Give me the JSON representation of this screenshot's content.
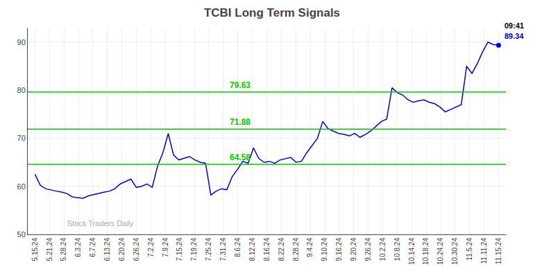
{
  "chart_data": {
    "type": "line",
    "title": "TCBI Long Term Signals",
    "x": [
      0,
      0.3678,
      0.7356,
      1.1034,
      1.4713,
      1.8391,
      2.2069,
      2.5747,
      2.9425,
      3.3103,
      3.6782,
      4.046,
      4.4138,
      4.7816,
      5.1494,
      5.5172,
      5.8851,
      6.2529,
      6.6207,
      6.9885,
      7.3563,
      7.7241,
      8.092,
      8.4598,
      8.8276,
      9.1954,
      9.5632,
      9.931,
      10.2989,
      10.6667,
      11.0345,
      11.4023,
      11.7701,
      12.1379,
      12.5057,
      12.8736,
      13.2414,
      13.6092,
      13.977,
      14.3448,
      14.7126,
      15.0805,
      15.4483,
      15.8161,
      16.1839,
      16.5517,
      16.9195,
      17.2874,
      17.6552,
      18.023,
      18.3908,
      18.7586,
      19.1264,
      19.4943,
      19.8621,
      20.2299,
      20.5977,
      20.9655,
      21.3333,
      21.7011,
      22.069,
      22.4368,
      22.8046,
      23.1724,
      23.5402,
      23.908,
      24.2759,
      24.6437,
      25.0115,
      25.3793,
      25.7471,
      26.1149,
      26.4828,
      26.8506,
      27.2184,
      27.5862,
      27.954,
      28.3218,
      28.6897,
      29.0575,
      29.4253,
      29.7931,
      30.1609,
      30.5287,
      30.8966,
      31.2644,
      31.6322,
      32
    ],
    "values": [
      62.5,
      60.2,
      59.5,
      59.2,
      59.0,
      58.8,
      58.5,
      57.8,
      57.6,
      57.5,
      58.0,
      58.3,
      58.5,
      58.8,
      59.0,
      59.5,
      60.5,
      61.0,
      61.5,
      59.8,
      60.0,
      60.5,
      59.8,
      64.2,
      67.0,
      71.0,
      66.5,
      65.5,
      65.8,
      66.2,
      65.5,
      65.0,
      64.8,
      58.2,
      59.0,
      59.5,
      59.3,
      62.0,
      63.5,
      65.2,
      64.8,
      68.0,
      65.8,
      65.0,
      65.2,
      64.8,
      65.5,
      65.8,
      66.0,
      65.0,
      65.2,
      67.0,
      68.5,
      70.0,
      73.5,
      72.0,
      71.5,
      71.0,
      70.8,
      70.5,
      71.0,
      70.2,
      70.8,
      71.5,
      72.5,
      73.5,
      74.0,
      80.5,
      79.5,
      79.0,
      78.0,
      77.5,
      77.8,
      78.0,
      77.5,
      77.2,
      76.5,
      75.5,
      76.0,
      76.5,
      77.0,
      85.0,
      83.5,
      85.5,
      88.0,
      90.0,
      89.5,
      89.34
    ],
    "color": "#0000dd",
    "xlim": [
      -0.5,
      32.5
    ],
    "xticks": [
      {
        "value": 0,
        "label": "5.15.24"
      },
      {
        "value": 1,
        "label": "5.21.24"
      },
      {
        "value": 2,
        "label": "5.28.24"
      },
      {
        "value": 3,
        "label": "6.3.24"
      },
      {
        "value": 4,
        "label": "6.7.24"
      },
      {
        "value": 5,
        "label": "6.13.24"
      },
      {
        "value": 6,
        "label": "6.20.24"
      },
      {
        "value": 7,
        "label": "6.26.24"
      },
      {
        "value": 8,
        "label": "7.2.24"
      },
      {
        "value": 9,
        "label": "7.9.24"
      },
      {
        "value": 10,
        "label": "7.15.24"
      },
      {
        "value": 11,
        "label": "7.19.24"
      },
      {
        "value": 12,
        "label": "7.25.24"
      },
      {
        "value": 13,
        "label": "7.31.24"
      },
      {
        "value": 14,
        "label": "8.6.24"
      },
      {
        "value": 15,
        "label": "8.12.24"
      },
      {
        "value": 16,
        "label": "8.16.24"
      },
      {
        "value": 17,
        "label": "8.22.24"
      },
      {
        "value": 18,
        "label": "8.28.24"
      },
      {
        "value": 19,
        "label": "9.4.24"
      },
      {
        "value": 20,
        "label": "9.10.24"
      },
      {
        "value": 21,
        "label": "9.16.24"
      },
      {
        "value": 22,
        "label": "9.20.24"
      },
      {
        "value": 23,
        "label": "9.26.24"
      },
      {
        "value": 24,
        "label": "10.2.24"
      },
      {
        "value": 25,
        "label": "10.8.24"
      },
      {
        "value": 26,
        "label": "10.14.24"
      },
      {
        "value": 27,
        "label": "10.18.24"
      },
      {
        "value": 28,
        "label": "10.24.24"
      },
      {
        "value": 29,
        "label": "10.30.24"
      },
      {
        "value": 30,
        "label": "11.5.24"
      },
      {
        "value": 31,
        "label": "11.11.24"
      },
      {
        "value": 32,
        "label": "11.15.24"
      }
    ],
    "ylim": [
      50,
      93
    ],
    "yticks": [
      50,
      60,
      70,
      80,
      90
    ],
    "grid": true,
    "hlines": [
      {
        "value": 64.58,
        "label": "64.58",
        "color": "#00cc00"
      },
      {
        "value": 71.88,
        "label": "71.88",
        "color": "#00cc00"
      },
      {
        "value": 79.63,
        "label": "79.63",
        "color": "#00cc00"
      }
    ],
    "annotations": [
      {
        "text": "09:41",
        "anchor": "last_point"
      },
      {
        "text": "89.34",
        "anchor": "last_point",
        "color": "#0000dd"
      },
      {
        "text": "Stock Traders Daily",
        "anchor": "watermark"
      }
    ]
  }
}
